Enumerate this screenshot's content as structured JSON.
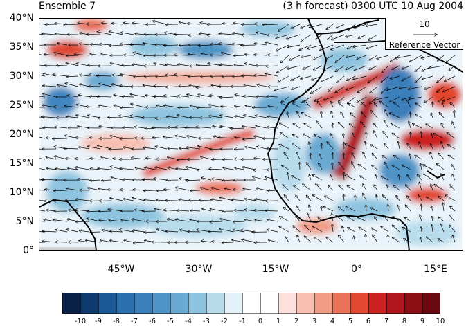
{
  "title_left": "Ensemble 7",
  "title_right": "(3 h forecast) 0300 UTC 10 Aug 2004",
  "lat_labels": [
    "40°N",
    "35°N",
    "30°N",
    "25°N",
    "20°N",
    "15°N",
    "10°N",
    "5°N",
    "0°"
  ],
  "lon_labels": [
    "45°W",
    "30°W",
    "15°W",
    "0°",
    "15°E"
  ],
  "reference_vector": {
    "magnitude": "10",
    "label": "Reference Vector"
  },
  "colorbar": {
    "labels": [
      "-10",
      "-9",
      "-8",
      "-7",
      "-6",
      "-5",
      "-4",
      "-3",
      "-2",
      "-1",
      "0",
      "1",
      "2",
      "3",
      "4",
      "5",
      "6",
      "7",
      "8",
      "9",
      "10"
    ],
    "colors": [
      "#0a2147",
      "#0f3a6e",
      "#1b5896",
      "#2b70ae",
      "#3b7fbb",
      "#4f94c6",
      "#6aaad2",
      "#8ec4df",
      "#b8dcec",
      "#e3f2fa",
      "#ffffff",
      "#ffffff",
      "#fde0dc",
      "#f8bfb2",
      "#f29b85",
      "#ec735a",
      "#e2472f",
      "#cc2222",
      "#b0141c",
      "#8c0e15",
      "#6a0a10"
    ]
  }
}
